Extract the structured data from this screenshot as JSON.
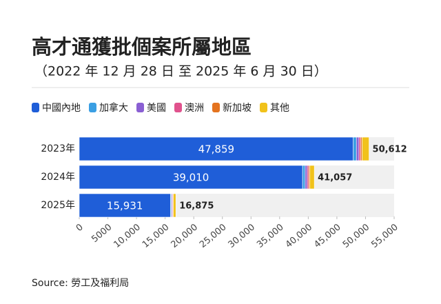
{
  "chart_data": {
    "type": "stacked-bar-horizontal",
    "title": "高才通獲批個案所屬地區",
    "subtitle": "（2022 年 12 月 28 日 至 2025 年 6 月 30 日）",
    "categories": [
      "2023年",
      "2024年",
      "2025年"
    ],
    "series": [
      {
        "name": "中國內地",
        "color": "#1f5ed8",
        "values": [
          47859,
          39010,
          15931
        ],
        "value_labels": [
          "47,859",
          "39,010",
          "15,931"
        ]
      },
      {
        "name": "加拿大",
        "color": "#3a9fe3",
        "values": [
          550,
          450,
          150
        ]
      },
      {
        "name": "美國",
        "color": "#8a5fd3",
        "values": [
          450,
          350,
          150
        ]
      },
      {
        "name": "澳洲",
        "color": "#e0528d",
        "values": [
          300,
          250,
          100
        ]
      },
      {
        "name": "新加坡",
        "color": "#e4731f",
        "values": [
          250,
          200,
          100
        ]
      },
      {
        "name": "其他",
        "color": "#f1c21b",
        "values": [
          1203,
          797,
          444
        ]
      }
    ],
    "totals": {
      "values": [
        50612,
        41057,
        16875
      ],
      "value_labels": [
        "50,612",
        "41,057",
        "16,875"
      ]
    },
    "xlim": [
      0,
      55000
    ],
    "xticks": [
      0,
      5000,
      {
        "value": 10000,
        "label": "10,000"
      },
      {
        "value": 15000,
        "label": "15,000"
      },
      {
        "value": 20000,
        "label": "20,000"
      },
      {
        "value": 25000,
        "label": "25,000"
      },
      {
        "value": 30000,
        "label": "30,000"
      },
      {
        "value": 35000,
        "label": "35,000"
      },
      {
        "value": 40000,
        "label": "40,000"
      },
      {
        "value": 45000,
        "label": "45,000"
      },
      {
        "value": 50000,
        "label": "50,000"
      },
      {
        "value": 55000,
        "label": "55,000"
      }
    ],
    "source": "Source: 勞工及福利局"
  }
}
